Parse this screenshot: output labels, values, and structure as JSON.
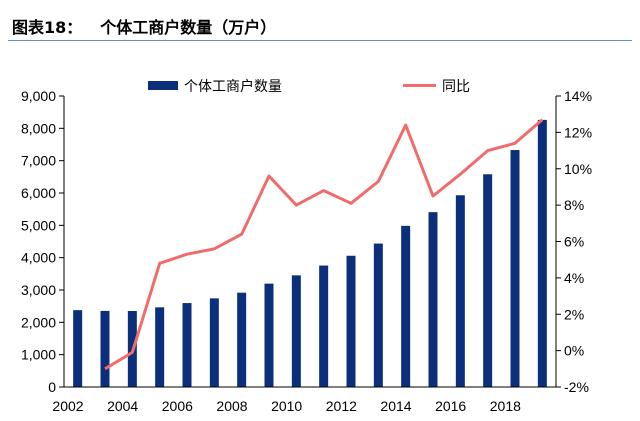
{
  "header": {
    "figure_label": "图表18：",
    "title": "个体工商户数量（万户）"
  },
  "chart_data": {
    "type": "bar+line",
    "title": "个体工商户数量（万户）",
    "x": [
      2002,
      2003,
      2004,
      2005,
      2006,
      2007,
      2008,
      2009,
      2010,
      2011,
      2012,
      2013,
      2014,
      2015,
      2016,
      2017,
      2018,
      2019
    ],
    "x_tick_labels": [
      "2002",
      "2004",
      "2006",
      "2008",
      "2010",
      "2012",
      "2014",
      "2016",
      "2018"
    ],
    "series": [
      {
        "name": "个体工商户数量",
        "kind": "bar",
        "axis": "left",
        "color": "#0b2f7a",
        "values": [
          2377,
          2353,
          2350,
          2464,
          2596,
          2741,
          2917,
          3197,
          3453,
          3756,
          4059,
          4436,
          4984,
          5408,
          5930,
          6579,
          7329,
          8261
        ]
      },
      {
        "name": "同比",
        "kind": "line",
        "axis": "right",
        "unit": "%",
        "color": "#f26b6b",
        "values": [
          null,
          -1.0,
          -0.1,
          4.8,
          5.3,
          5.6,
          6.4,
          9.6,
          8.0,
          8.8,
          8.1,
          9.3,
          12.4,
          8.5,
          9.7,
          11.0,
          11.4,
          12.7
        ]
      }
    ],
    "y_left": {
      "ylim": [
        0,
        9000
      ],
      "ticks": [
        0,
        1000,
        2000,
        3000,
        4000,
        5000,
        6000,
        7000,
        8000,
        9000
      ],
      "tick_labels": [
        "0",
        "1,000",
        "2,000",
        "3,000",
        "4,000",
        "5,000",
        "6,000",
        "7,000",
        "8,000",
        "9,000"
      ]
    },
    "y_right": {
      "ylim": [
        -2,
        14
      ],
      "ticks": [
        -2,
        0,
        2,
        4,
        6,
        8,
        10,
        12,
        14
      ],
      "tick_labels": [
        "-2%",
        "0%",
        "2%",
        "4%",
        "6%",
        "8%",
        "10%",
        "12%",
        "14%"
      ]
    },
    "legend": {
      "placement": "top-center",
      "items": [
        "个体工商户数量",
        "同比"
      ]
    },
    "grid": false
  }
}
